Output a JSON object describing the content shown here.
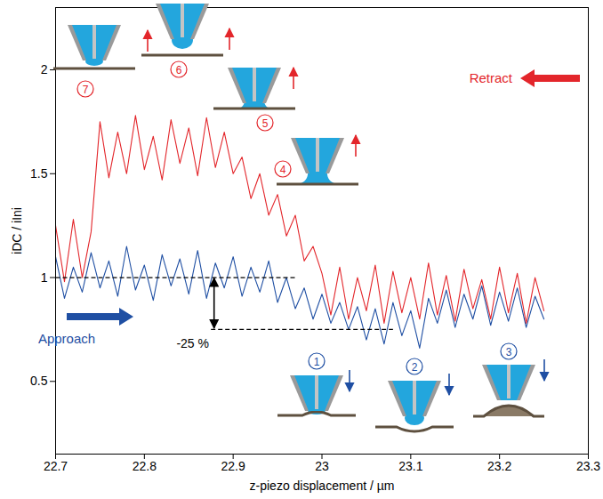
{
  "chart_data": {
    "type": "line",
    "x_label": "z-piezo displacement / µm",
    "y_label": "iDC / iIni",
    "x": [
      22.7,
      22.71,
      22.72,
      22.73,
      22.74,
      22.75,
      22.76,
      22.77,
      22.78,
      22.79,
      22.8,
      22.81,
      22.82,
      22.83,
      22.84,
      22.85,
      22.86,
      22.87,
      22.88,
      22.89,
      22.9,
      22.91,
      22.92,
      22.93,
      22.94,
      22.95,
      22.96,
      22.97,
      22.98,
      22.99,
      23,
      23.01,
      23.02,
      23.03,
      23.04,
      23.05,
      23.06,
      23.07,
      23.08,
      23.09,
      23.1,
      23.11,
      23.12,
      23.13,
      23.14,
      23.15,
      23.16,
      23.17,
      23.18,
      23.19,
      23.2,
      23.21,
      23.22,
      23.23,
      23.24,
      23.25
    ],
    "series": [
      {
        "name": "Approach",
        "color": "#1f4fa3",
        "values": [
          1.1,
          0.9,
          1.05,
          0.93,
          1.12,
          0.95,
          1.08,
          0.91,
          1.15,
          0.94,
          1.06,
          0.89,
          1.11,
          0.96,
          1.09,
          0.92,
          1.13,
          0.9,
          1.07,
          0.95,
          1.1,
          0.91,
          1.05,
          0.93,
          1.08,
          0.88,
          1.0,
          0.85,
          0.95,
          0.8,
          0.92,
          0.78,
          0.88,
          0.75,
          0.86,
          0.7,
          0.85,
          0.68,
          0.88,
          0.72,
          0.84,
          0.66,
          0.9,
          0.78,
          0.94,
          0.76,
          0.92,
          0.8,
          0.96,
          0.77,
          0.93,
          0.79,
          0.95,
          0.76,
          0.91,
          0.8
        ]
      },
      {
        "name": "Retract",
        "color": "#e3262b",
        "values": [
          1.25,
          0.98,
          1.28,
          1.0,
          1.22,
          1.75,
          1.48,
          1.7,
          1.5,
          1.78,
          1.52,
          1.68,
          1.47,
          1.76,
          1.55,
          1.72,
          1.49,
          1.77,
          1.53,
          1.7,
          1.5,
          1.58,
          1.38,
          1.5,
          1.3,
          1.4,
          1.2,
          1.3,
          1.08,
          1.15,
          1.02,
          0.82,
          1.05,
          0.8,
          1.0,
          0.84,
          1.06,
          0.78,
          1.03,
          0.83,
          1.0,
          0.8,
          1.07,
          0.82,
          1.01,
          0.79,
          1.04,
          0.85,
          0.99,
          0.8,
          1.05,
          0.83,
          1.02,
          0.78,
          1.0,
          0.84
        ]
      }
    ],
    "xlim": [
      22.7,
      23.3
    ],
    "xticks": [
      22.7,
      22.8,
      22.9,
      23,
      23.1,
      23.2,
      23.3
    ],
    "ylim": [
      0.15,
      2.3
    ],
    "yticks": [
      0.5,
      1,
      1.5,
      2
    ],
    "annotations": {
      "reference_lines": [
        {
          "y": 1,
          "x": [
            22.7,
            22.97
          ]
        },
        {
          "y": 0.75,
          "x": [
            22.875,
            23.08
          ]
        }
      ],
      "difference_label": "-25 %",
      "steps": [
        {
          "label": "1",
          "series": "Approach"
        },
        {
          "label": "2",
          "series": "Approach"
        },
        {
          "label": "3",
          "series": "Approach"
        },
        {
          "label": "4",
          "series": "Retract"
        },
        {
          "label": "5",
          "series": "Retract"
        },
        {
          "label": "6",
          "series": "Retract"
        },
        {
          "label": "7",
          "series": "Retract"
        }
      ]
    }
  }
}
